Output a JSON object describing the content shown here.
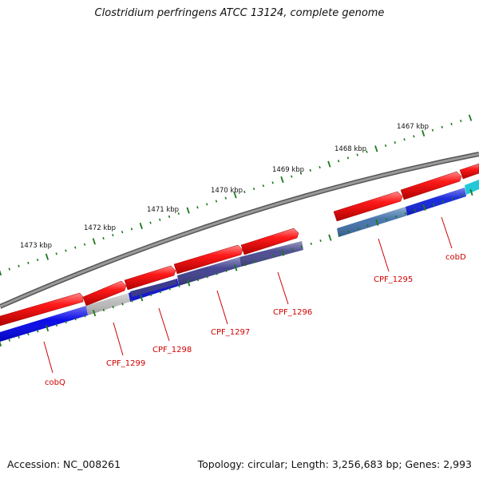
{
  "header": {
    "title": "Clostridium perfringens ATCC 13124, complete genome"
  },
  "footer": {
    "accession": "Accession: NC_008261",
    "summary": "Topology: circular; Length: 3,256,683 bp; Genes: 2,993"
  },
  "ruler": {
    "labels": [
      "1473 kbp",
      "1472 kbp",
      "1471 kbp",
      "1470 kbp",
      "1469 kbp",
      "1468 kbp",
      "1467 kbp"
    ]
  },
  "genes": [
    {
      "name": "cobQ"
    },
    {
      "name": "CPF_1299"
    },
    {
      "name": "CPF_1298"
    },
    {
      "name": "CPF_1297"
    },
    {
      "name": "CPF_1296"
    },
    {
      "name": "CPF_1295"
    },
    {
      "name": "cobD"
    }
  ],
  "colors": {
    "backbone": "#7a7a7a",
    "forward_cds": "#e60000",
    "tick": "#1a7a1a",
    "label": "#d00000",
    "cobQ": "#0000e6",
    "CPF_1299": "#b8b8b8",
    "CPF_1298": "#1a1acc",
    "CPF_1297": "#3c3c8c",
    "CPF_1296": "#46468e",
    "CPF_1295": "#3f6fa8",
    "cobD": "#0f1fd9",
    "next": "#22c8d8"
  }
}
